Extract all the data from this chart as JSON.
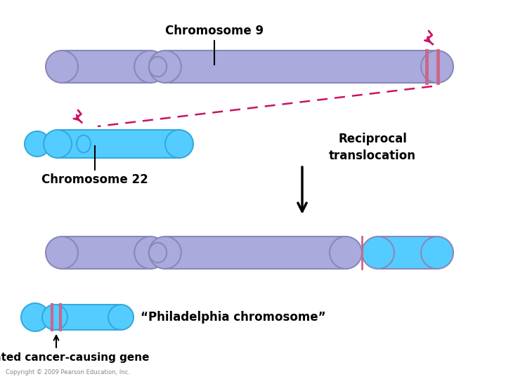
{
  "bg_color": "#ffffff",
  "purple_fill": "#aaaadd",
  "purple_edge": "#8888bb",
  "blue_fill": "#55ccff",
  "blue_edge": "#33aadd",
  "pink_band": "#cc6688",
  "pink_arrow": "#cc1166",
  "text_color": "#000000",
  "chr9_label": "Chromosome 9",
  "chr22_label": "Chromosome 22",
  "reciprocal_label": "Reciprocal\ntranslocation",
  "philadelphia_label": "“Philadelphia chromosome”",
  "activated_label": "Activated cancer-causing gene",
  "copyright_label": "Copyright © 2009 Pearson Education, Inc."
}
